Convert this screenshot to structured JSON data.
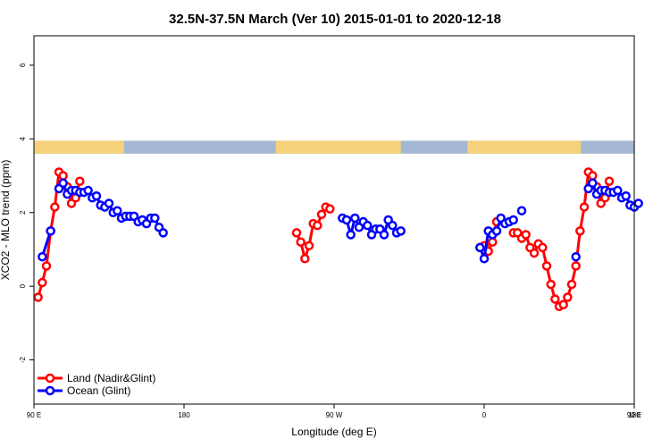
{
  "chart_data": {
    "type": "line",
    "title": "32.5N-37.5N March (Ver 10)   2015-01-01 to 2020-12-18",
    "xlabel": "Longitude (deg E)",
    "ylabel": "XCO2 - MLO trend (ppm)",
    "xlim": [
      90,
      450
    ],
    "ylim": [
      -3.2,
      6.8
    ],
    "x_ticks": [
      {
        "value": 90,
        "label": "90 E"
      },
      {
        "value": 180,
        "label": "180"
      },
      {
        "value": 270,
        "label": "90 W"
      },
      {
        "value": 360,
        "label": "0"
      },
      {
        "value": 450,
        "label": "90 E"
      },
      {
        "value": 540,
        "label": "180"
      }
    ],
    "y_ticks": [
      {
        "value": -2,
        "label": "-2"
      },
      {
        "value": 0,
        "label": "0"
      },
      {
        "value": 2,
        "label": "2"
      },
      {
        "value": 4,
        "label": "4"
      },
      {
        "value": 6,
        "label": "6"
      }
    ],
    "grid": false,
    "legend_position": "bottom-left",
    "colors": {
      "land": "#ff0000",
      "ocean": "#0000ff",
      "land_band": "#f5d27a",
      "ocean_band": "#a4b7d4"
    },
    "land_mask": {
      "y_range": [
        3.6,
        3.95
      ],
      "land_lon_ranges": [
        [
          90,
          144
        ],
        [
          235,
          310
        ],
        [
          350,
          418
        ],
        [
          450,
          504
        ]
      ]
    },
    "series": [
      {
        "name": "Land (Nadir&Glint)",
        "segments": [
          [
            [
              92.5,
              -0.3
            ],
            [
              95,
              0.1
            ],
            [
              97.5,
              0.55
            ],
            [
              100,
              1.5
            ],
            [
              102.5,
              2.15
            ],
            [
              105,
              3.1
            ],
            [
              107.5,
              3.0
            ],
            [
              110,
              2.7
            ],
            [
              112.5,
              2.25
            ],
            [
              115,
              2.4
            ],
            [
              117.5,
              2.85
            ]
          ],
          [
            [
              247.5,
              1.45
            ],
            [
              250,
              1.2
            ],
            [
              252.5,
              0.75
            ],
            [
              255,
              1.1
            ],
            [
              257.5,
              1.7
            ],
            [
              260,
              1.65
            ],
            [
              262.5,
              1.95
            ],
            [
              265,
              2.15
            ],
            [
              267.5,
              2.1
            ]
          ],
          [
            [
              357.5,
              1.05
            ],
            [
              360,
              1.1
            ],
            [
              362.5,
              0.95
            ],
            [
              365,
              1.2
            ],
            [
              367.5,
              1.75
            ]
          ],
          [
            [
              377.5,
              1.45
            ],
            [
              380,
              1.45
            ],
            [
              382.5,
              1.3
            ],
            [
              385,
              1.4
            ],
            [
              387.5,
              1.05
            ],
            [
              390,
              0.9
            ],
            [
              392.5,
              1.15
            ],
            [
              395,
              1.05
            ],
            [
              397.5,
              0.55
            ],
            [
              400,
              0.05
            ],
            [
              402.5,
              -0.35
            ],
            [
              405,
              -0.55
            ],
            [
              407.5,
              -0.5
            ],
            [
              410,
              -0.3
            ],
            [
              412.5,
              0.05
            ],
            [
              415,
              0.55
            ],
            [
              417.5,
              1.5
            ],
            [
              420,
              2.15
            ],
            [
              422.5,
              3.1
            ],
            [
              425,
              3.0
            ],
            [
              427.5,
              2.7
            ],
            [
              430,
              2.25
            ],
            [
              432.5,
              2.4
            ],
            [
              435,
              2.85
            ]
          ]
        ]
      },
      {
        "name": "Ocean (Glint)",
        "segments": [
          [
            [
              95,
              0.8
            ],
            [
              100,
              1.5
            ]
          ],
          [
            [
              105,
              2.65
            ],
            [
              107.5,
              2.8
            ],
            [
              110,
              2.5
            ],
            [
              112.5,
              2.6
            ],
            [
              115,
              2.6
            ],
            [
              117.5,
              2.55
            ],
            [
              120,
              2.55
            ],
            [
              122.5,
              2.6
            ],
            [
              125,
              2.4
            ],
            [
              127.5,
              2.45
            ],
            [
              130,
              2.2
            ],
            [
              132.5,
              2.15
            ],
            [
              135,
              2.25
            ],
            [
              137.5,
              2.0
            ],
            [
              140,
              2.05
            ],
            [
              142.5,
              1.85
            ],
            [
              145,
              1.9
            ],
            [
              147.5,
              1.9
            ],
            [
              150,
              1.9
            ],
            [
              152.5,
              1.75
            ],
            [
              155,
              1.8
            ],
            [
              157.5,
              1.7
            ],
            [
              160,
              1.85
            ],
            [
              162.5,
              1.85
            ],
            [
              165,
              1.6
            ],
            [
              167.5,
              1.45
            ]
          ],
          [
            [
              275,
              1.85
            ],
            [
              277.5,
              1.8
            ],
            [
              280,
              1.4
            ],
            [
              282.5,
              1.85
            ],
            [
              285,
              1.6
            ],
            [
              287.5,
              1.75
            ],
            [
              290,
              1.65
            ],
            [
              292.5,
              1.4
            ],
            [
              295,
              1.55
            ],
            [
              297.5,
              1.55
            ],
            [
              300,
              1.4
            ],
            [
              302.5,
              1.8
            ],
            [
              305,
              1.65
            ],
            [
              307.5,
              1.45
            ],
            [
              310,
              1.5
            ]
          ],
          [
            [
              357.5,
              1.05
            ],
            [
              360,
              0.75
            ],
            [
              362.5,
              1.5
            ],
            [
              365,
              1.4
            ],
            [
              367.5,
              1.5
            ],
            [
              370,
              1.85
            ],
            [
              372.5,
              1.7
            ],
            [
              375,
              1.75
            ],
            [
              377.5,
              1.8
            ]
          ],
          [
            [
              382.5,
              2.05
            ]
          ],
          [
            [
              415,
              0.8
            ]
          ],
          [
            [
              422.5,
              2.65
            ],
            [
              425,
              2.8
            ],
            [
              427.5,
              2.5
            ],
            [
              430,
              2.6
            ],
            [
              432.5,
              2.6
            ],
            [
              435,
              2.55
            ],
            [
              437.5,
              2.55
            ],
            [
              440,
              2.6
            ],
            [
              442.5,
              2.4
            ],
            [
              445,
              2.45
            ],
            [
              447.5,
              2.2
            ],
            [
              450,
              2.15
            ],
            [
              452.5,
              2.25
            ]
          ]
        ]
      }
    ]
  }
}
